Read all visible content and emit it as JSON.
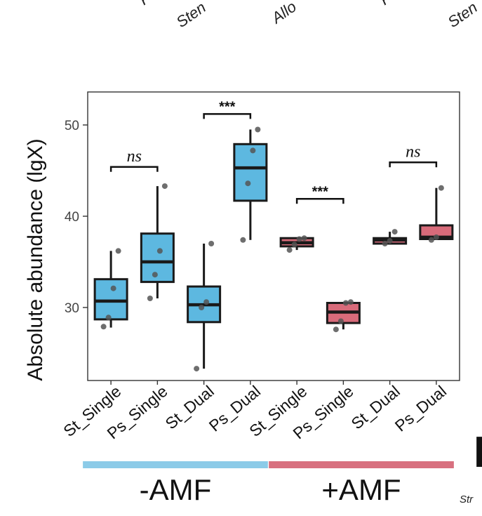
{
  "top_fragments": [
    "F",
    "Sten",
    "Allo",
    "F",
    "Sten"
  ],
  "edge_right": {
    "letter": "I",
    "fragment": "Str"
  },
  "chart_data": {
    "type": "box",
    "ylabel": "Absolute abundance (lgX)",
    "ylim": [
      22,
      55
    ],
    "yticks": [
      30,
      40,
      50
    ],
    "categories": [
      "St_Single",
      "Ps_Single",
      "St_Dual",
      "Ps_Dual",
      "St_Single",
      "Ps_Single",
      "St_Dual",
      "Ps_Dual"
    ],
    "boxes": [
      {
        "category": "St_Single",
        "group": "-AMF",
        "min": 27.8,
        "q1": 28.7,
        "median": 30.7,
        "q3": 33.1,
        "max": 36.2,
        "points": [
          27.9,
          28.9,
          32.1,
          36.2
        ],
        "color": "#5db8e0"
      },
      {
        "category": "Ps_Single",
        "group": "-AMF",
        "min": 31.0,
        "q1": 32.8,
        "median": 35.0,
        "q3": 38.1,
        "max": 43.3,
        "points": [
          31.0,
          33.6,
          36.2,
          43.3
        ],
        "color": "#5db8e0"
      },
      {
        "category": "St_Dual",
        "group": "-AMF",
        "min": 23.3,
        "q1": 28.4,
        "median": 30.3,
        "q3": 32.3,
        "max": 37.0,
        "points": [
          23.3,
          30.0,
          30.6,
          37.0
        ],
        "color": "#5db8e0"
      },
      {
        "category": "Ps_Dual",
        "group": "-AMF",
        "min": 37.4,
        "q1": 41.7,
        "median": 45.3,
        "q3": 47.9,
        "max": 49.5,
        "points": [
          37.4,
          43.6,
          47.2,
          49.5
        ],
        "color": "#5db8e0"
      },
      {
        "category": "St_Single",
        "group": "+AMF",
        "min": 36.3,
        "q1": 36.7,
        "median": 37.1,
        "q3": 37.6,
        "max": 37.6,
        "points": [
          36.3,
          36.9,
          37.5,
          37.6
        ],
        "color": "#d86b7a"
      },
      {
        "category": "Ps_Single",
        "group": "+AMF",
        "min": 27.6,
        "q1": 28.3,
        "median": 29.5,
        "q3": 30.5,
        "max": 30.6,
        "points": [
          27.6,
          28.5,
          30.5,
          30.6
        ],
        "color": "#d86b7a"
      },
      {
        "category": "St_Dual",
        "group": "+AMF",
        "min": 36.9,
        "q1": 37.0,
        "median": 37.4,
        "q3": 37.6,
        "max": 38.3,
        "points": [
          37.0,
          37.3,
          38.3
        ],
        "color": "#d86b7a"
      },
      {
        "category": "Ps_Dual",
        "group": "+AMF",
        "min": 37.4,
        "q1": 37.5,
        "median": 37.7,
        "q3": 39.0,
        "max": 43.1,
        "points": [
          37.4,
          37.7,
          43.1
        ],
        "color": "#d86b7a"
      }
    ],
    "significance": [
      {
        "from": 0,
        "to": 1,
        "label": "ns",
        "y": 45.4
      },
      {
        "from": 2,
        "to": 3,
        "label": "***",
        "y": 51.2
      },
      {
        "from": 4,
        "to": 5,
        "label": "***",
        "y": 41.9
      },
      {
        "from": 6,
        "to": 7,
        "label": "ns",
        "y": 45.9
      }
    ],
    "groups": [
      {
        "label": "-AMF",
        "from": 0,
        "to": 3,
        "color": "#8ccbe8"
      },
      {
        "label": "+AMF",
        "from": 4,
        "to": 7,
        "color": "#d8707f"
      }
    ],
    "grid": false,
    "legend": "none"
  }
}
